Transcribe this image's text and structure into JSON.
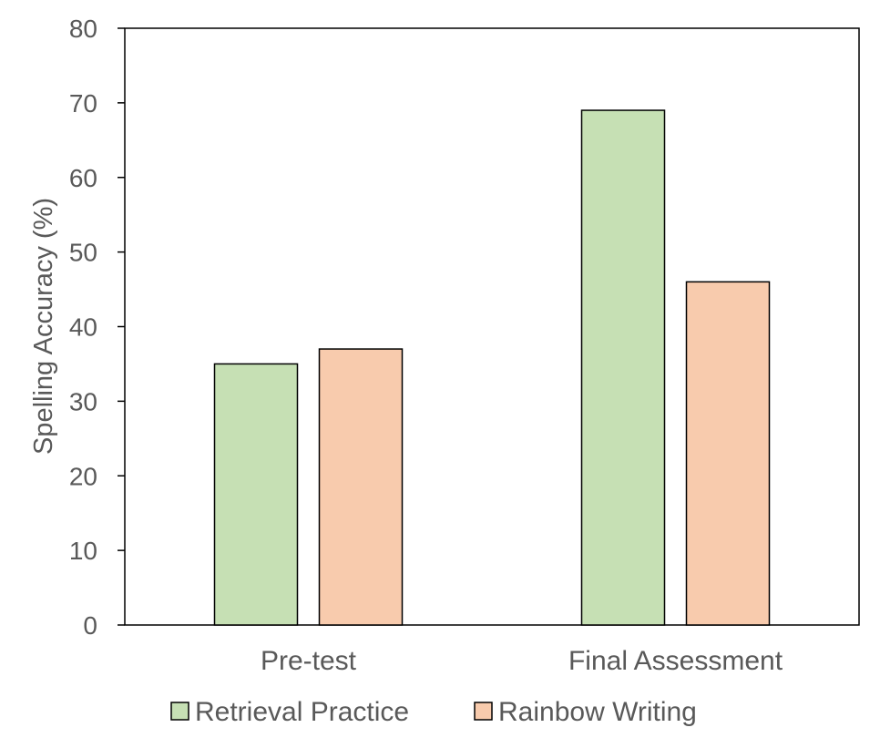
{
  "chart_data": {
    "type": "bar",
    "categories": [
      "Pre-test",
      "Final Assessment"
    ],
    "series": [
      {
        "name": "Retrieval Practice",
        "values": [
          35,
          69
        ],
        "color": "#c6e0b4"
      },
      {
        "name": "Rainbow Writing",
        "values": [
          37,
          46
        ],
        "color": "#f8cbad"
      }
    ],
    "title": "",
    "xlabel": "",
    "ylabel": "Spelling Accuracy (%)",
    "ylim": [
      0,
      80
    ],
    "yticks": [
      0,
      10,
      20,
      30,
      40,
      50,
      60,
      70,
      80
    ],
    "grid": false,
    "legend": "bottom"
  }
}
